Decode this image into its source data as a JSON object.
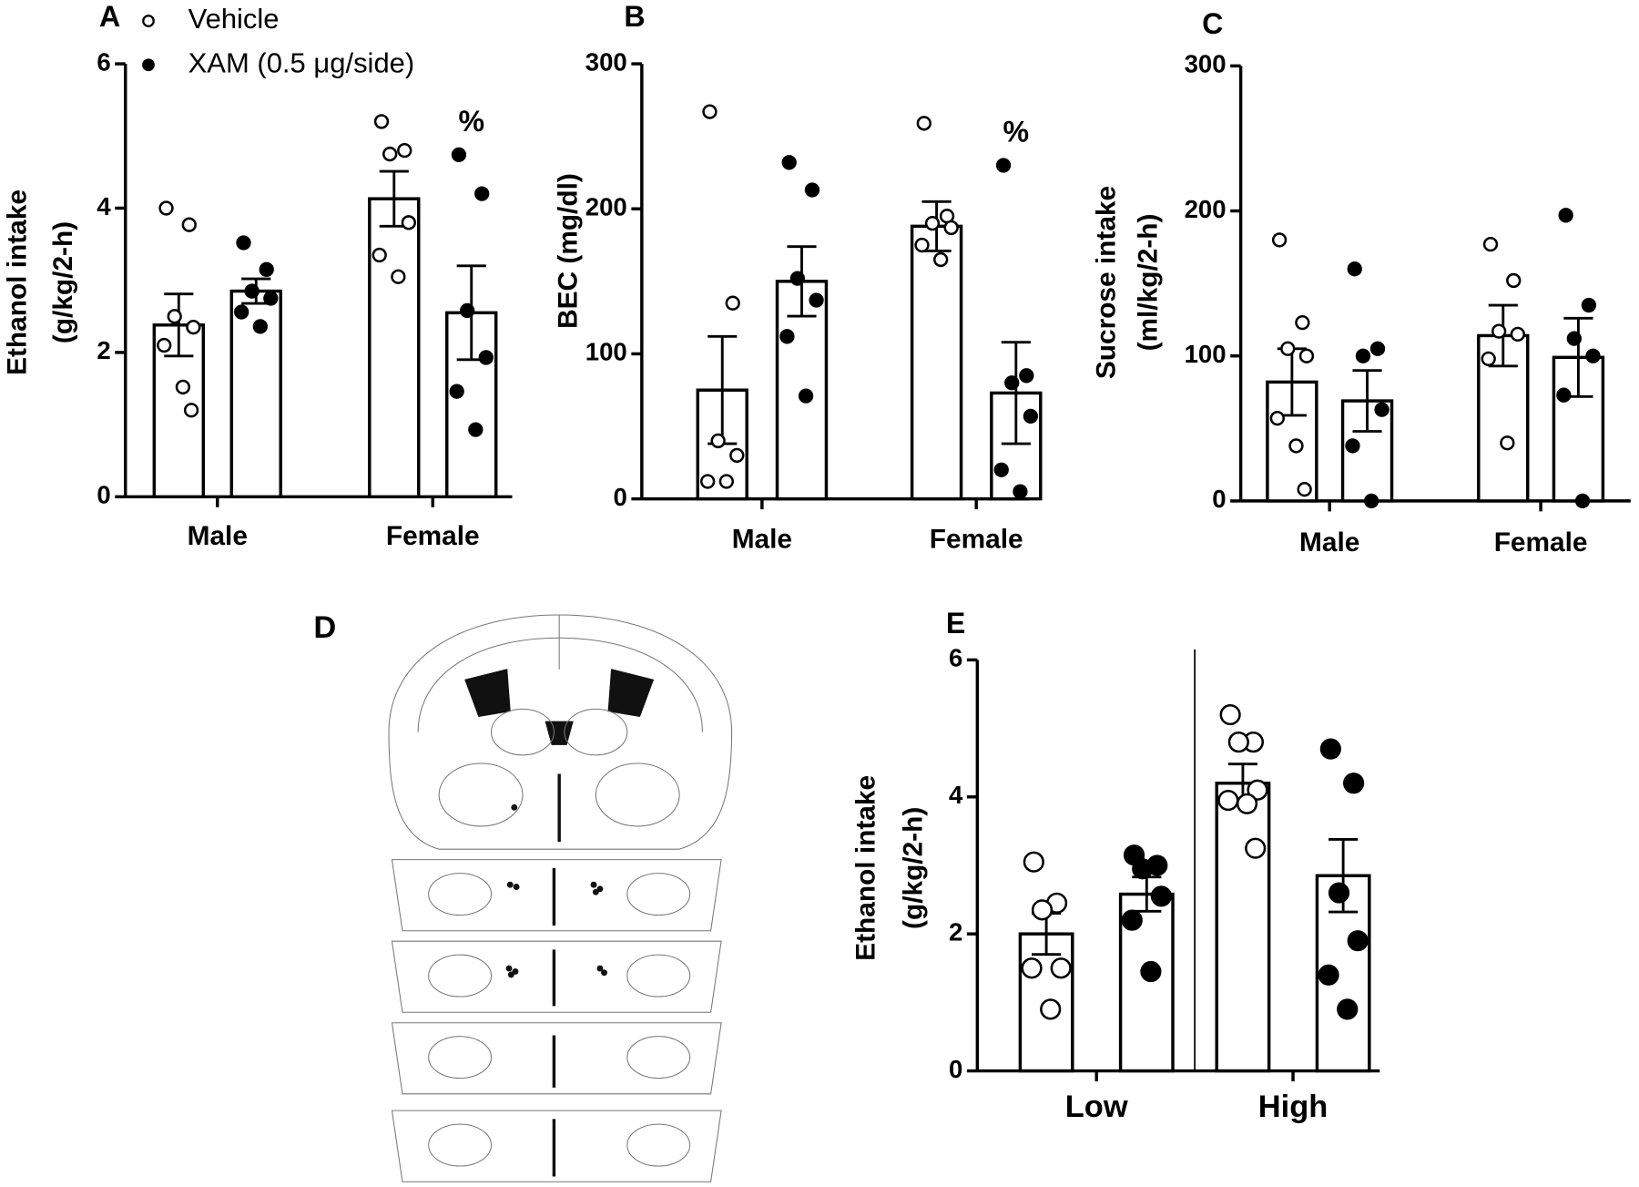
{
  "chart_data": [
    {
      "type": "bar",
      "label": "A",
      "ylabel": [
        "Ethanol intake",
        "(g/kg/2-h)"
      ],
      "categories": [
        "Male",
        "Female"
      ],
      "ylim": [
        0,
        6
      ],
      "yticks": [
        0,
        2,
        4,
        6
      ],
      "legend": true,
      "annotations": [
        {
          "text": "%",
          "category": 1,
          "series": 1
        }
      ],
      "series": [
        {
          "name": "Vehicle",
          "marker": "open",
          "values": [
            2.38,
            4.13
          ],
          "errors": [
            0.43,
            0.38
          ],
          "points": [
            [
              4.0,
              3.77,
              2.5,
              2.35,
              2.1,
              1.52,
              1.2
            ],
            [
              5.2,
              4.8,
              4.75,
              3.8,
              3.35,
              3.05
            ]
          ]
        },
        {
          "name": "XAM (0.5 μg/side)",
          "marker": "filled",
          "values": [
            2.85,
            2.55
          ],
          "errors": [
            0.17,
            0.65
          ],
          "points": [
            [
              3.52,
              3.15,
              2.85,
              2.75,
              2.56,
              2.36
            ],
            [
              4.74,
              4.2,
              2.58,
              1.93,
              1.46,
              0.93
            ]
          ]
        }
      ]
    },
    {
      "type": "bar",
      "label": "B",
      "ylabel": [
        "BEC (mg/dl)"
      ],
      "categories": [
        "Male",
        "Female"
      ],
      "ylim": [
        0,
        300
      ],
      "yticks": [
        0,
        100,
        200,
        300
      ],
      "legend": false,
      "annotations": [
        {
          "text": "%",
          "category": 1,
          "series": 1
        }
      ],
      "series": [
        {
          "marker": "open",
          "values": [
            75,
            188
          ],
          "errors": [
            37,
            17
          ],
          "points": [
            [
              267,
              135,
              40,
              30,
              12,
              12
            ],
            [
              259,
              195,
              190,
              187,
              175,
              165
            ]
          ]
        },
        {
          "marker": "filled",
          "values": [
            150,
            73
          ],
          "errors": [
            24,
            35
          ],
          "points": [
            [
              232,
              213,
              152,
              137,
              112,
              71
            ],
            [
              230,
              85,
              80,
              57,
              20,
              5
            ]
          ]
        }
      ]
    },
    {
      "type": "bar",
      "label": "C",
      "ylabel": [
        "Sucrose intake",
        "(ml/kg/2-h)"
      ],
      "categories": [
        "Male",
        "Female"
      ],
      "ylim": [
        0,
        300
      ],
      "yticks": [
        0,
        100,
        200,
        300
      ],
      "legend": false,
      "series": [
        {
          "marker": "open",
          "values": [
            82,
            114
          ],
          "errors": [
            23,
            21
          ],
          "points": [
            [
              180,
              123,
              105,
              100,
              57,
              38,
              8
            ],
            [
              177,
              152,
              117,
              115,
              98,
              40
            ]
          ]
        },
        {
          "marker": "filled",
          "values": [
            69,
            99
          ],
          "errors": [
            21,
            27
          ],
          "points": [
            [
              160,
              105,
              100,
              63,
              38,
              0
            ],
            [
              197,
              135,
              112,
              100,
              73,
              0
            ]
          ]
        }
      ]
    },
    {
      "type": "bar",
      "label": "E",
      "ylabel": [
        "Ethanol intake",
        "(g/kg/2-h)"
      ],
      "categories": [
        "Low",
        "High"
      ],
      "ylim": [
        0,
        6
      ],
      "yticks": [
        0,
        2,
        4,
        6
      ],
      "legend": false,
      "series": [
        {
          "marker": "open",
          "values": [
            2.0,
            4.2
          ],
          "errors": [
            0.3,
            0.28
          ],
          "points": [
            [
              3.05,
              2.45,
              2.35,
              1.5,
              1.5,
              0.9
            ],
            [
              5.2,
              4.8,
              4.8,
              4.1,
              3.95,
              3.9,
              3.25
            ]
          ]
        },
        {
          "marker": "filled",
          "values": [
            2.58,
            2.85
          ],
          "errors": [
            0.25,
            0.53
          ],
          "points": [
            [
              3.15,
              3.0,
              2.95,
              2.55,
              2.2,
              1.45
            ],
            [
              4.7,
              4.2,
              2.6,
              1.9,
              1.4,
              0.9
            ]
          ]
        }
      ]
    }
  ],
  "diagram": {
    "label": "D"
  }
}
